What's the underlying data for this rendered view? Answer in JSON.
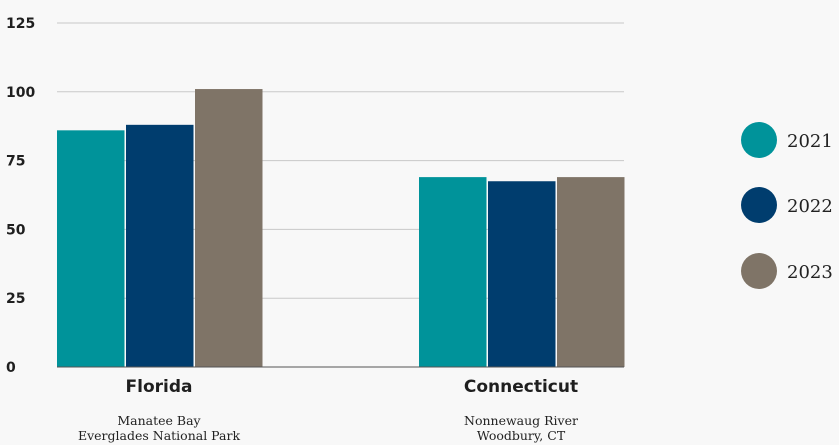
{
  "chart_data": {
    "type": "bar",
    "title": "",
    "xlabel": "",
    "ylabel": "",
    "ylim": [
      0,
      125
    ],
    "yticks": [
      0,
      25,
      50,
      75,
      100,
      125
    ],
    "grid": true,
    "legend_position": "right",
    "categories": [
      {
        "name": "Florida",
        "sublabel_1": "Manatee Bay",
        "sublabel_2": "Everglades National Park"
      },
      {
        "name": "Connecticut",
        "sublabel_1": "Nonnewaug River",
        "sublabel_2": "Woodbury, CT"
      }
    ],
    "series": [
      {
        "name": "2021",
        "color": "#00939a",
        "values": [
          86,
          69
        ]
      },
      {
        "name": "2022",
        "color": "#003d6e",
        "values": [
          88,
          67.5
        ]
      },
      {
        "name": "2023",
        "color": "#7f7467",
        "values": [
          101,
          69
        ]
      }
    ]
  }
}
